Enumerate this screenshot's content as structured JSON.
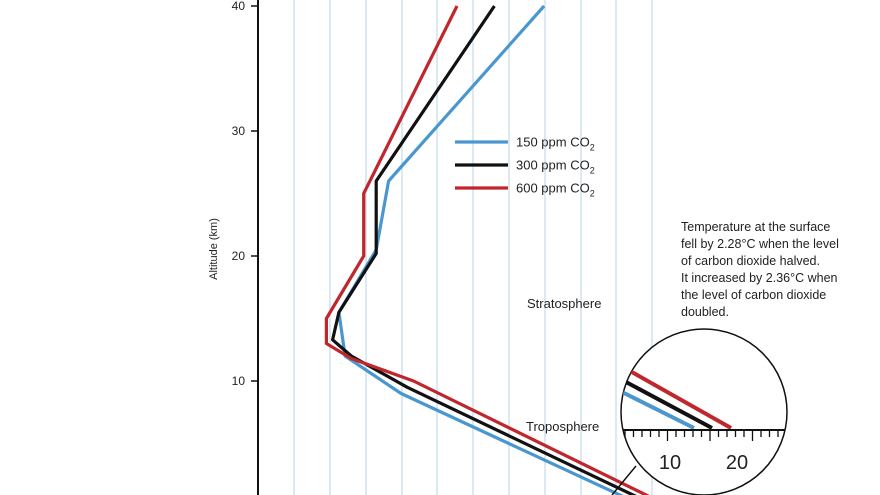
{
  "chart_data": {
    "type": "line",
    "ylabel": "Altitude (km)",
    "ylim": [
      0,
      40
    ],
    "yticks": [
      10,
      20,
      30,
      40
    ],
    "x_gridlines": 11,
    "grid": "vertical",
    "legend_position": "center",
    "series": [
      {
        "name": "150 ppm CO",
        "subscript": "2",
        "color": "#4a97cf",
        "points": [
          {
            "x": 0.62,
            "y": 0
          },
          {
            "x": 0.23,
            "y": 9
          },
          {
            "x": 0.14,
            "y": 12
          },
          {
            "x": 0.13,
            "y": 15.5
          },
          {
            "x": 0.19,
            "y": 20.5
          },
          {
            "x": 0.21,
            "y": 26
          },
          {
            "x": 0.46,
            "y": 40
          }
        ]
      },
      {
        "name": "300 ppm CO",
        "subscript": "2",
        "color": "#111111",
        "points": [
          {
            "x": 0.64,
            "y": 0
          },
          {
            "x": 0.24,
            "y": 9.5
          },
          {
            "x": 0.15,
            "y": 12
          },
          {
            "x": 0.12,
            "y": 13.3
          },
          {
            "x": 0.13,
            "y": 15.5
          },
          {
            "x": 0.19,
            "y": 20.2
          },
          {
            "x": 0.19,
            "y": 26
          },
          {
            "x": 0.38,
            "y": 40
          }
        ]
      },
      {
        "name": "600 ppm CO",
        "subscript": "2",
        "color": "#c0272d",
        "points": [
          {
            "x": 0.66,
            "y": 0
          },
          {
            "x": 0.25,
            "y": 10
          },
          {
            "x": 0.15,
            "y": 11.8
          },
          {
            "x": 0.11,
            "y": 13
          },
          {
            "x": 0.11,
            "y": 15
          },
          {
            "x": 0.17,
            "y": 20
          },
          {
            "x": 0.17,
            "y": 25
          },
          {
            "x": 0.32,
            "y": 40
          }
        ]
      }
    ],
    "regions": [
      {
        "label": "Stratosphere"
      },
      {
        "label": "Troposphere"
      }
    ],
    "annotation": [
      "Temperature at the surface",
      "fell by 2.28°C when the level",
      "of carbon dioxide halved.",
      "It increased by 2.36°C when",
      "the level of carbon dioxide",
      "doubled."
    ],
    "inset": {
      "scale_labels": [
        "10",
        "20"
      ]
    }
  }
}
